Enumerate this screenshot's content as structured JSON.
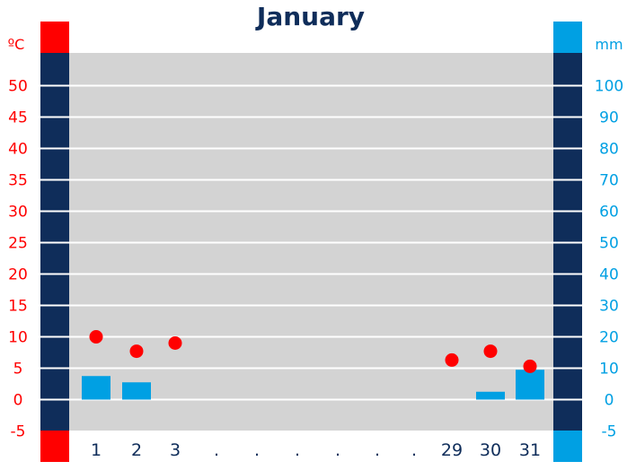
{
  "colors": {
    "temperature": "#ff0000",
    "precipitation": "#00a0e3",
    "title": "#0f2d5a",
    "axis_band": "#0f2d5a",
    "plot_bg": "#d3d3d3",
    "grid": "#ffffff"
  },
  "chart_data": {
    "type": "bar",
    "title": "January",
    "left_axis_unit": "ºC",
    "right_axis_unit": "mm",
    "x_ticks": [
      "1",
      "2",
      "3",
      ".",
      ".",
      ".",
      ".",
      ".",
      ".",
      "29",
      "30",
      "31"
    ],
    "left_ticks": [
      "50",
      "45",
      "40",
      "35",
      "30",
      "25",
      "20",
      "15",
      "10",
      "5",
      "0",
      "-5"
    ],
    "right_ticks": [
      "100",
      "90",
      "80",
      "70",
      "60",
      "50",
      "40",
      "30",
      "20",
      "10",
      "0",
      "-5"
    ],
    "left_ylim": [
      -5,
      55
    ],
    "right_ylim": [
      -10,
      110
    ],
    "grid": true,
    "series": [
      {
        "type": "scatter",
        "axis": "left",
        "days": [
          "1",
          "2",
          "3",
          "29",
          "30",
          "31"
        ],
        "values": [
          10,
          7.7,
          9,
          6.3,
          7.7,
          5.3
        ]
      },
      {
        "type": "bar",
        "axis": "right",
        "days": [
          "1",
          "2",
          "3",
          "29",
          "30",
          "31"
        ],
        "values": [
          7.5,
          5.5,
          0,
          0,
          2.5,
          9.5
        ]
      }
    ]
  }
}
